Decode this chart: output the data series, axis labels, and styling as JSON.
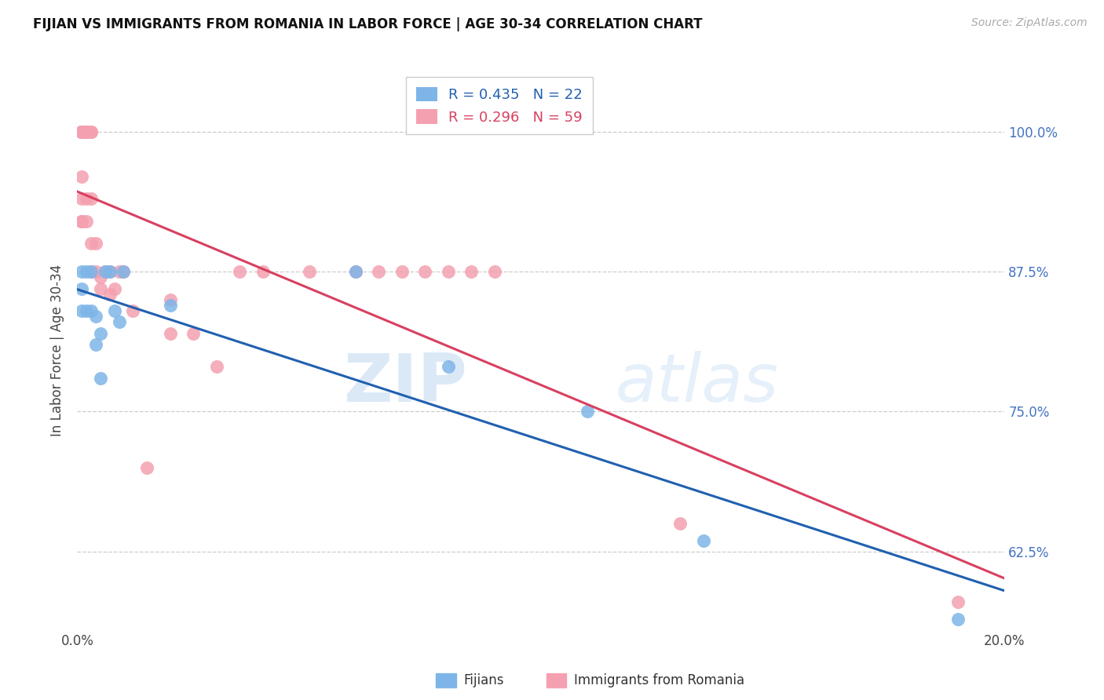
{
  "title": "FIJIAN VS IMMIGRANTS FROM ROMANIA IN LABOR FORCE | AGE 30-34 CORRELATION CHART",
  "source": "Source: ZipAtlas.com",
  "ylabel": "In Labor Force | Age 30-34",
  "xlim": [
    0.0,
    0.2
  ],
  "ylim": [
    0.555,
    1.055
  ],
  "yticks": [
    0.625,
    0.75,
    0.875,
    1.0
  ],
  "ytick_labels": [
    "62.5%",
    "75.0%",
    "87.5%",
    "100.0%"
  ],
  "xtick_vals": [
    0.0,
    0.05,
    0.1,
    0.15,
    0.2
  ],
  "xtick_labels": [
    "0.0%",
    "",
    "",
    "",
    "20.0%"
  ],
  "fijian_color": "#7EB5E8",
  "romania_color": "#F4A0B0",
  "fijian_line_color": "#2060B0",
  "romania_line_color": "#D84060",
  "fijian_R": 0.435,
  "fijian_N": 22,
  "romania_R": 0.296,
  "romania_N": 59,
  "fijian_x": [
    0.001,
    0.001,
    0.001,
    0.002,
    0.002,
    0.003,
    0.003,
    0.004,
    0.004,
    0.005,
    0.005,
    0.006,
    0.007,
    0.008,
    0.009,
    0.01,
    0.02,
    0.06,
    0.08,
    0.11,
    0.135,
    0.19
  ],
  "fijian_y": [
    0.84,
    0.86,
    0.875,
    0.84,
    0.875,
    0.84,
    0.875,
    0.81,
    0.835,
    0.78,
    0.82,
    0.875,
    0.875,
    0.84,
    0.83,
    0.875,
    0.845,
    0.875,
    0.79,
    0.75,
    0.635,
    0.565
  ],
  "romania_x": [
    0.001,
    0.001,
    0.001,
    0.001,
    0.001,
    0.001,
    0.001,
    0.001,
    0.001,
    0.001,
    0.001,
    0.001,
    0.001,
    0.001,
    0.001,
    0.001,
    0.002,
    0.002,
    0.002,
    0.002,
    0.002,
    0.002,
    0.002,
    0.002,
    0.002,
    0.002,
    0.003,
    0.003,
    0.003,
    0.003,
    0.003,
    0.004,
    0.004,
    0.005,
    0.005,
    0.006,
    0.007,
    0.007,
    0.008,
    0.009,
    0.01,
    0.012,
    0.015,
    0.02,
    0.02,
    0.025,
    0.03,
    0.035,
    0.04,
    0.05,
    0.06,
    0.065,
    0.07,
    0.075,
    0.08,
    0.085,
    0.09,
    0.13,
    0.19
  ],
  "romania_y": [
    1.0,
    1.0,
    1.0,
    1.0,
    1.0,
    1.0,
    1.0,
    1.0,
    1.0,
    1.0,
    1.0,
    0.96,
    0.94,
    0.92,
    0.92,
    0.92,
    1.0,
    1.0,
    1.0,
    1.0,
    1.0,
    1.0,
    1.0,
    1.0,
    0.94,
    0.92,
    1.0,
    1.0,
    0.94,
    0.9,
    0.875,
    0.9,
    0.875,
    0.87,
    0.86,
    0.875,
    0.875,
    0.855,
    0.86,
    0.875,
    0.875,
    0.84,
    0.7,
    0.85,
    0.82,
    0.82,
    0.79,
    0.875,
    0.875,
    0.875,
    0.875,
    0.875,
    0.875,
    0.875,
    0.875,
    0.875,
    0.875,
    0.65,
    0.58
  ],
  "watermark_zip": "ZIP",
  "watermark_atlas": "atlas",
  "background_color": "#FFFFFF",
  "grid_color": "#CCCCCC",
  "label_fijians": "Fijians",
  "label_romania": "Immigrants from Romania"
}
